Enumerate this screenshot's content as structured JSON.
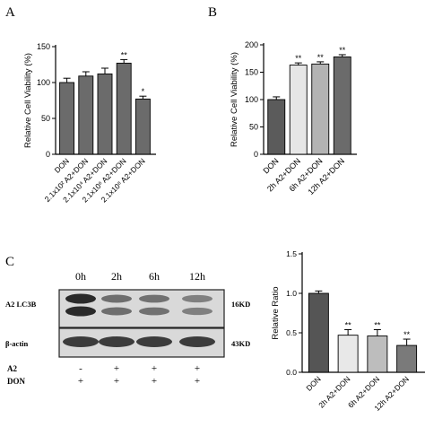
{
  "panel_labels": {
    "a": "A",
    "b": "B",
    "c": "C"
  },
  "colors": {
    "a_bars": "#6b6b6b",
    "b_bars": [
      "#5b5b5b",
      "#e6e6e6",
      "#b3b3b3",
      "#6b6b6b"
    ],
    "c_bars": [
      "#555555",
      "#e8e8e8",
      "#bdbdbd",
      "#7a7a7a"
    ],
    "blot_bg": "#d9d9d9",
    "band": "#2a2a2a"
  },
  "western_blot": {
    "time_labels": [
      "0h",
      "2h",
      "6h",
      "12h"
    ],
    "rows": [
      {
        "label": "A2 LC3B",
        "size": "16KD",
        "intensity": [
          1.0,
          0.48,
          0.46,
          0.34
        ]
      },
      {
        "label": "β-actin",
        "size": "43KD",
        "intensity": [
          1.0,
          1.0,
          1.0,
          1.0
        ]
      }
    ],
    "treatments": [
      {
        "label": "A2",
        "marks": [
          "-",
          "+",
          "+",
          "+"
        ]
      },
      {
        "label": "DON",
        "marks": [
          "+",
          "+",
          "+",
          "+"
        ]
      }
    ]
  },
  "chart_data": [
    {
      "panel": "A",
      "type": "bar",
      "ylabel": "Relative Cell Viability  (%)",
      "ylim": [
        0,
        150
      ],
      "yticks": [
        0,
        50,
        100,
        150
      ],
      "categories": [
        "DON",
        "2.1x10² A2+DON",
        "2.1x10⁴ A2+DON",
        "2.1x10⁶ A2+DON",
        "2.1x10⁸ A2+DON"
      ],
      "values": [
        100,
        109,
        112,
        127,
        77
      ],
      "errors": [
        6,
        6,
        8,
        5,
        4
      ],
      "significance": [
        "",
        "",
        "",
        "**",
        "*"
      ]
    },
    {
      "panel": "B",
      "type": "bar",
      "ylabel": "Relative Cell Viability  (%)",
      "ylim": [
        0,
        200
      ],
      "yticks": [
        0,
        50,
        100,
        150,
        200
      ],
      "categories": [
        "DON",
        "2h A2+DON",
        "6h A2+DON",
        "12h A2+DON"
      ],
      "values": [
        100,
        163,
        165,
        178
      ],
      "errors": [
        5,
        4,
        4,
        4
      ],
      "significance": [
        "",
        "**",
        "**",
        "**"
      ]
    },
    {
      "panel": "C",
      "type": "bar",
      "ylabel": "Relative Ratio",
      "ylim": [
        0,
        1.5
      ],
      "yticks": [
        "0.0",
        "0.5",
        "1.0",
        "1.5"
      ],
      "categories": [
        "DON",
        "2h A2+DON",
        "6h A2+DON",
        "12h A2+DON"
      ],
      "values": [
        1.0,
        0.47,
        0.46,
        0.34
      ],
      "errors": [
        0.03,
        0.07,
        0.08,
        0.08
      ],
      "significance": [
        "",
        "**",
        "**",
        "**"
      ]
    }
  ]
}
